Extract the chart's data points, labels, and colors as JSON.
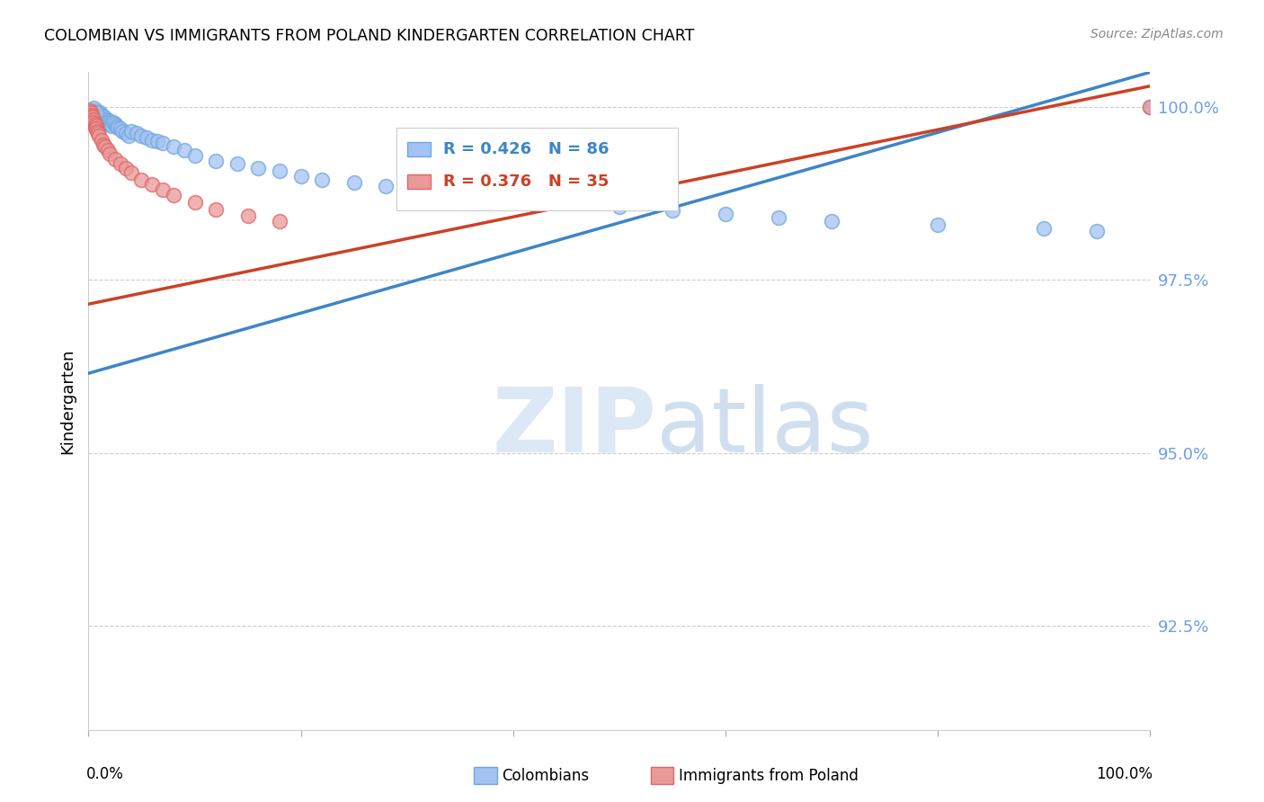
{
  "title": "COLOMBIAN VS IMMIGRANTS FROM POLAND KINDERGARTEN CORRELATION CHART",
  "source": "Source: ZipAtlas.com",
  "ylabel": "Kindergarten",
  "ytick_labels": [
    "100.0%",
    "97.5%",
    "95.0%",
    "92.5%"
  ],
  "ytick_values": [
    1.0,
    0.975,
    0.95,
    0.925
  ],
  "xlim": [
    0.0,
    1.0
  ],
  "ylim": [
    0.91,
    1.005
  ],
  "legend1_color_fill": "#a4c2f4",
  "legend1_color_edge": "#6fa8dc",
  "legend2_color_fill": "#ea9999",
  "legend2_color_edge": "#e06666",
  "trendline1_color": "#3d85c8",
  "trendline2_color": "#cc4125",
  "scatter1_color_fill": "#a4c2f4",
  "scatter1_color_edge": "#6fa8dc",
  "scatter2_color_fill": "#ea9999",
  "scatter2_color_edge": "#e06666",
  "ytick_color": "#6d9eeb",
  "grid_color": "#cccccc",
  "trendline1_y_start": 0.9615,
  "trendline1_y_end": 1.005,
  "trendline2_y_start": 0.9715,
  "trendline2_y_end": 1.003,
  "colombians_x": [
    0.001,
    0.001,
    0.002,
    0.002,
    0.003,
    0.003,
    0.003,
    0.004,
    0.004,
    0.004,
    0.005,
    0.005,
    0.005,
    0.005,
    0.006,
    0.006,
    0.006,
    0.007,
    0.007,
    0.007,
    0.008,
    0.008,
    0.008,
    0.009,
    0.009,
    0.01,
    0.01,
    0.01,
    0.011,
    0.011,
    0.012,
    0.012,
    0.013,
    0.014,
    0.015,
    0.015,
    0.016,
    0.017,
    0.018,
    0.019,
    0.02,
    0.021,
    0.022,
    0.023,
    0.025,
    0.027,
    0.028,
    0.03,
    0.032,
    0.035,
    0.038,
    0.04,
    0.045,
    0.05,
    0.055,
    0.06,
    0.065,
    0.07,
    0.08,
    0.09,
    0.1,
    0.12,
    0.14,
    0.16,
    0.18,
    0.2,
    0.22,
    0.25,
    0.28,
    0.3,
    0.35,
    0.4,
    0.42,
    0.5,
    0.55,
    0.6,
    0.65,
    0.7,
    0.8,
    0.9,
    0.95,
    1.0,
    0.003,
    0.005,
    0.007
  ],
  "colombians_y": [
    0.999,
    0.9995,
    0.999,
    0.9985,
    0.999,
    0.9985,
    0.9995,
    0.9985,
    0.999,
    0.9988,
    0.999,
    0.9985,
    0.9995,
    0.9992,
    0.9985,
    0.999,
    0.9992,
    0.9988,
    0.9982,
    0.9995,
    0.9985,
    0.998,
    0.9992,
    0.9988,
    0.9982,
    0.9985,
    0.999,
    0.9978,
    0.9985,
    0.9992,
    0.9982,
    0.9988,
    0.9985,
    0.9982,
    0.998,
    0.9985,
    0.9982,
    0.9978,
    0.9975,
    0.998,
    0.9978,
    0.9975,
    0.9972,
    0.9978,
    0.9975,
    0.9972,
    0.997,
    0.9968,
    0.9965,
    0.9962,
    0.9958,
    0.9965,
    0.9962,
    0.9958,
    0.9955,
    0.9952,
    0.995,
    0.9948,
    0.9942,
    0.9938,
    0.993,
    0.9922,
    0.9918,
    0.9912,
    0.9908,
    0.99,
    0.9895,
    0.989,
    0.9885,
    0.988,
    0.9872,
    0.9865,
    0.986,
    0.9855,
    0.985,
    0.9845,
    0.984,
    0.9835,
    0.983,
    0.9825,
    0.982,
    1.0,
    0.9995,
    0.9998,
    0.9992
  ],
  "poland_x": [
    0.001,
    0.001,
    0.002,
    0.002,
    0.003,
    0.003,
    0.004,
    0.004,
    0.005,
    0.005,
    0.006,
    0.006,
    0.007,
    0.007,
    0.008,
    0.009,
    0.01,
    0.012,
    0.014,
    0.016,
    0.018,
    0.02,
    0.025,
    0.03,
    0.035,
    0.04,
    0.05,
    0.06,
    0.07,
    0.08,
    0.1,
    0.12,
    0.15,
    0.18,
    1.0
  ],
  "poland_y": [
    0.9995,
    0.9988,
    0.9992,
    0.9985,
    0.9988,
    0.9982,
    0.9985,
    0.9978,
    0.9982,
    0.9978,
    0.9975,
    0.997,
    0.9972,
    0.9968,
    0.9965,
    0.9962,
    0.9958,
    0.9952,
    0.9945,
    0.9942,
    0.9938,
    0.9932,
    0.9925,
    0.9918,
    0.9912,
    0.9905,
    0.9895,
    0.9888,
    0.988,
    0.9872,
    0.9862,
    0.9852,
    0.9842,
    0.9835,
    1.0
  ]
}
